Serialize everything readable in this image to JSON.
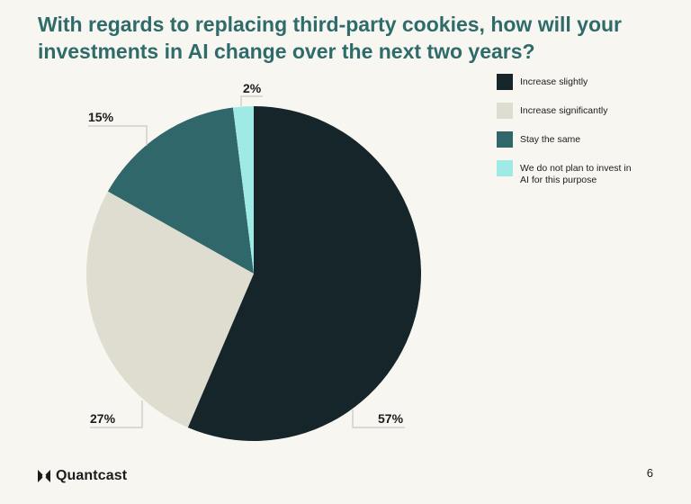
{
  "header": {
    "title": "With regards to replacing third-party cookies, how will your investments in AI change over the next two years?"
  },
  "chart_data": {
    "type": "pie",
    "title": "With regards to replacing third-party cookies, how will your investments in AI change over the next two years?",
    "categories": [
      "Increase slightly",
      "Increase significantly",
      "Stay the same",
      "We do not plan to invest in AI for this purpose"
    ],
    "values": [
      57,
      27,
      15,
      2
    ],
    "labels": [
      "57%",
      "27%",
      "15%",
      "2%"
    ],
    "colors": [
      "#15252a",
      "#dfddd0",
      "#2f676b",
      "#9feae4"
    ],
    "legend_position": "right"
  },
  "legend": {
    "items": [
      {
        "label": "Increase slightly",
        "color": "#15252a"
      },
      {
        "label": "Increase significantly",
        "color": "#dfddd0"
      },
      {
        "label": "Stay the same",
        "color": "#2f676b"
      },
      {
        "label": "We do not plan to invest in AI for this purpose",
        "color": "#9feae4"
      }
    ]
  },
  "footer": {
    "brand": "Quantcast",
    "page_number": "6"
  }
}
